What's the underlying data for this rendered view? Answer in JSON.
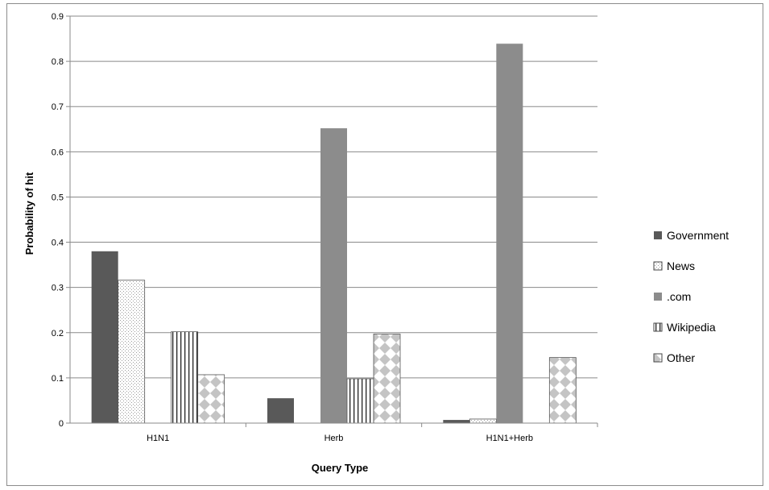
{
  "chart_data": {
    "type": "bar",
    "title": "",
    "xlabel": "Query Type",
    "ylabel": "Probability of hit",
    "ylim": [
      0,
      0.9
    ],
    "ytick_step": 0.1,
    "yticks": [
      "0",
      "0.1",
      "0.2",
      "0.3",
      "0.4",
      "0.5",
      "0.6",
      "0.7",
      "0.8",
      "0.9"
    ],
    "grid": true,
    "legend_position": "right",
    "categories": [
      "H1N1",
      "Herb",
      "H1N1+Herb"
    ],
    "series": [
      {
        "name": "Government",
        "values": [
          0.38,
          0.055,
          0.007
        ],
        "pattern": "solid-dark",
        "color": "#595959"
      },
      {
        "name": "News",
        "values": [
          0.316,
          0.0,
          0.009
        ],
        "pattern": "dots",
        "color": "#f2f2f2"
      },
      {
        "name": ".com",
        "values": [
          0.0,
          0.652,
          0.839
        ],
        "pattern": "solid-gray",
        "color": "#8c8c8c"
      },
      {
        "name": "Wikipedia",
        "values": [
          0.202,
          0.098,
          0.0
        ],
        "pattern": "vertical-lines",
        "color": "#ffffff"
      },
      {
        "name": "Other",
        "values": [
          0.107,
          0.197,
          0.145
        ],
        "pattern": "checker",
        "color": "#c8c8c8"
      }
    ]
  }
}
